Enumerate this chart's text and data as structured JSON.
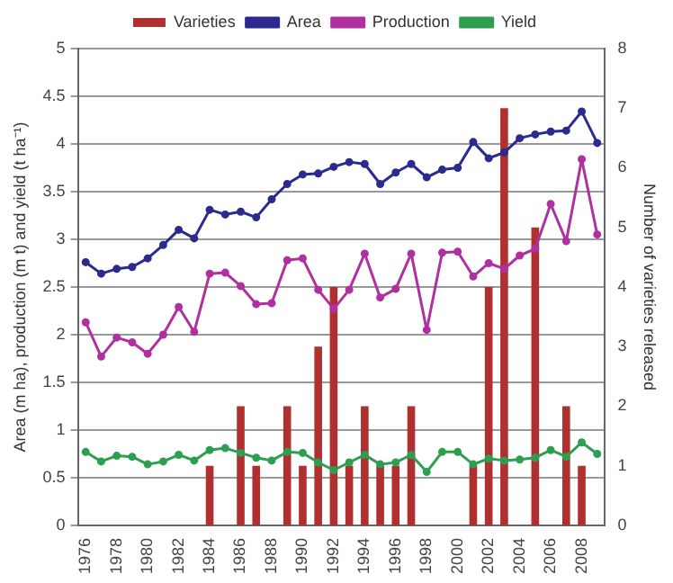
{
  "chart_data": {
    "type": "line",
    "ylabel": "Area (m ha), production (m t) and yield (t ha⁻¹)",
    "y2label": "Number of varieties released",
    "categories": [
      "1976",
      null,
      "1978",
      null,
      "1980",
      null,
      "1982",
      null,
      "1984",
      null,
      "1986",
      null,
      "1988",
      null,
      "1990",
      null,
      "1992",
      null,
      "1994",
      null,
      "1996",
      null,
      "1998",
      null,
      "2000",
      null,
      "2002",
      null,
      "2004",
      null,
      "2006",
      null,
      "2008",
      null
    ],
    "series": [
      {
        "name": "Varieties",
        "type": "bar",
        "axis": "y2",
        "color": "#b03030",
        "values": [
          null,
          null,
          null,
          null,
          null,
          null,
          null,
          null,
          1,
          null,
          2,
          1,
          null,
          2,
          1,
          3,
          4,
          1,
          2,
          1,
          1,
          2,
          null,
          null,
          null,
          1,
          4,
          7,
          null,
          5,
          null,
          2,
          1,
          null
        ]
      },
      {
        "name": "Area",
        "color": "#2b2b8f",
        "values": [
          2.76,
          2.64,
          2.69,
          2.71,
          2.8,
          2.94,
          3.1,
          3.01,
          3.31,
          3.26,
          3.29,
          3.23,
          3.42,
          3.58,
          3.68,
          3.69,
          3.76,
          3.81,
          3.79,
          3.58,
          3.7,
          3.79,
          3.65,
          3.73,
          3.75,
          4.02,
          3.85,
          3.91,
          4.06,
          4.1,
          4.13,
          4.14,
          4.34,
          4.01
        ]
      },
      {
        "name": "Production",
        "color": "#b030a0",
        "values": [
          2.13,
          1.77,
          1.97,
          1.92,
          1.8,
          2.0,
          2.29,
          2.03,
          2.64,
          2.65,
          2.51,
          2.32,
          2.33,
          2.78,
          2.8,
          2.47,
          2.27,
          2.47,
          2.85,
          2.39,
          2.48,
          2.85,
          2.05,
          2.86,
          2.87,
          2.61,
          2.75,
          2.69,
          2.83,
          2.9,
          3.37,
          2.98,
          3.84,
          3.05
        ]
      },
      {
        "name": "Yield",
        "color": "#2e9e50",
        "values": [
          0.77,
          0.67,
          0.73,
          0.72,
          0.64,
          0.67,
          0.74,
          0.68,
          0.79,
          0.81,
          0.76,
          0.71,
          0.68,
          0.77,
          0.76,
          0.66,
          0.58,
          0.66,
          0.74,
          0.64,
          0.66,
          0.74,
          0.56,
          0.77,
          0.77,
          0.64,
          0.7,
          0.68,
          0.69,
          0.71,
          0.79,
          0.72,
          0.87,
          0.75
        ]
      }
    ],
    "ylim": [
      0,
      5
    ],
    "yticks": [
      0,
      0.5,
      1,
      1.5,
      2,
      2.5,
      3,
      3.5,
      4,
      4.5,
      5
    ],
    "y2lim": [
      0,
      8
    ],
    "y2ticks": [
      0,
      1,
      2,
      3,
      4,
      5,
      6,
      7,
      8
    ],
    "grid": "y",
    "legend": "top",
    "marker": "circle",
    "line_style": "solid"
  }
}
